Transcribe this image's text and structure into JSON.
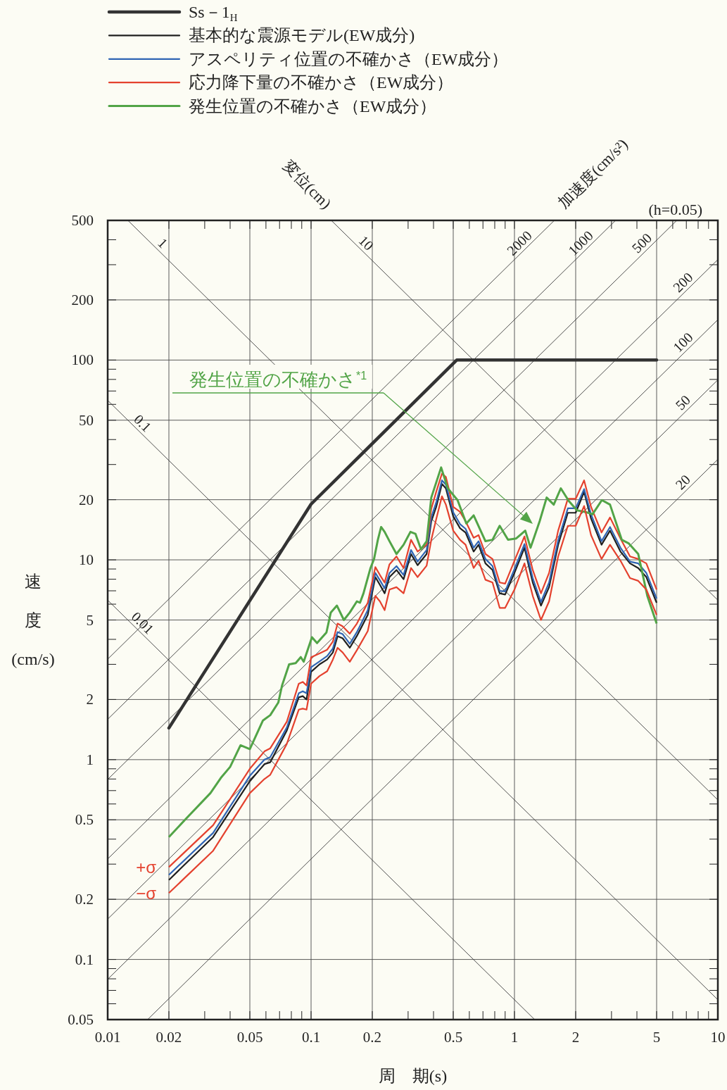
{
  "chart_data": {
    "type": "line",
    "log": "xy",
    "grid": true,
    "legend": "top left",
    "xlabel": "周　期(s)",
    "ylabel": "速度(cm/s)",
    "xlim": [
      0.01,
      10
    ],
    "ylim": [
      0.05,
      500
    ],
    "xticks": [
      0.01,
      0.02,
      {
        "value": 0.03,
        "label": null
      },
      {
        "value": 0.04,
        "label": null
      },
      0.05,
      {
        "value": 0.06,
        "label": null
      },
      {
        "value": 0.07,
        "label": null
      },
      {
        "value": 0.08,
        "label": null
      },
      {
        "value": 0.09,
        "label": null
      },
      0.1,
      0.2,
      {
        "value": 0.3,
        "label": null
      },
      {
        "value": 0.4,
        "label": null
      },
      0.5,
      {
        "value": 0.6,
        "label": null
      },
      {
        "value": 0.7,
        "label": null
      },
      {
        "value": 0.8,
        "label": null
      },
      {
        "value": 0.9,
        "label": null
      },
      1,
      2,
      {
        "value": 3,
        "label": null
      },
      {
        "value": 4,
        "label": null
      },
      5,
      {
        "value": 6,
        "label": null
      },
      {
        "value": 7,
        "label": null
      },
      {
        "value": 8,
        "label": null
      },
      {
        "value": 9,
        "label": null
      },
      10
    ],
    "yticks": [
      0.05,
      {
        "value": 0.06,
        "label": null
      },
      {
        "value": 0.07,
        "label": null
      },
      {
        "value": 0.08,
        "label": null
      },
      {
        "value": 0.09,
        "label": null
      },
      0.1,
      0.2,
      {
        "value": 0.3,
        "label": null
      },
      {
        "value": 0.4,
        "label": null
      },
      0.5,
      {
        "value": 0.6,
        "label": null
      },
      {
        "value": 0.7,
        "label": null
      },
      {
        "value": 0.8,
        "label": null
      },
      {
        "value": 0.9,
        "label": null
      },
      1,
      2,
      {
        "value": 3,
        "label": null
      },
      {
        "value": 4,
        "label": null
      },
      5,
      {
        "value": 6,
        "label": null
      },
      {
        "value": 7,
        "label": null
      },
      {
        "value": 8,
        "label": null
      },
      {
        "value": 9,
        "label": null
      },
      10,
      20,
      {
        "value": 30,
        "label": null
      },
      {
        "value": 40,
        "label": null
      },
      50,
      {
        "value": 60,
        "label": null
      },
      {
        "value": 70,
        "label": null
      },
      {
        "value": 80,
        "label": null
      },
      {
        "value": 90,
        "label": null
      },
      100,
      200,
      {
        "value": 300,
        "label": null
      },
      {
        "value": 400,
        "label": null
      },
      500
    ],
    "x": [
      0.02,
      0.033,
      0.05,
      0.059,
      0.063,
      0.076,
      0.087,
      0.091,
      0.095,
      0.1,
      0.11,
      0.12,
      0.128,
      0.135,
      0.143,
      0.155,
      0.168,
      0.19,
      0.207,
      0.218,
      0.23,
      0.243,
      0.263,
      0.285,
      0.31,
      0.334,
      0.37,
      0.39,
      0.413,
      0.44,
      0.46,
      0.5,
      0.54,
      0.575,
      0.63,
      0.666,
      0.72,
      0.78,
      0.846,
      0.9,
      1,
      1.12,
      1.23,
      1.35,
      1.48,
      1.64,
      1.83,
      2,
      2.2,
      2.38,
      2.68,
      2.95,
      3.32,
      3.7,
      4.06,
      4.45,
      5
    ],
    "series": [
      {
        "name": "10",
        "color": "#3c3c3c",
        "x": [
          0.1257,
          10
        ],
        "values": [
          500,
          6.283
        ]
      },
      {
        "name": "1",
        "color": "#3c3c3c",
        "x": [
          0.01257,
          10
        ],
        "values": [
          500,
          0.6283
        ]
      },
      {
        "name": "0.1",
        "color": "#3c3c3c",
        "x": [
          0.01,
          10
        ],
        "values": [
          62.83,
          0.06283
        ]
      },
      {
        "name": "0.01",
        "color": "#3c3c3c",
        "x": [
          0.01,
          1.257
        ],
        "values": [
          6.283,
          0.05
        ]
      },
      {
        "name": "2000",
        "color": "#3c3c3c",
        "x": [
          0.01,
          1.571
        ],
        "values": [
          3.183,
          500
        ]
      },
      {
        "name": "1000",
        "color": "#3c3c3c",
        "x": [
          0.01,
          3.142
        ],
        "values": [
          1.592,
          500
        ]
      },
      {
        "name": "500",
        "color": "#3c3c3c",
        "x": [
          0.01,
          6.283
        ],
        "values": [
          0.7958,
          500
        ]
      },
      {
        "name": "200",
        "color": "#3c3c3c",
        "x": [
          0.01,
          10
        ],
        "values": [
          0.3183,
          318.3
        ]
      },
      {
        "name": "100",
        "color": "#3c3c3c",
        "x": [
          0.01,
          10
        ],
        "values": [
          0.1592,
          159.2
        ]
      },
      {
        "name": "50",
        "color": "#3c3c3c",
        "x": [
          0.01,
          10
        ],
        "values": [
          0.07958,
          79.58
        ]
      },
      {
        "name": "20",
        "color": "#3c3c3c",
        "x": [
          0.01571,
          10
        ],
        "values": [
          0.05,
          31.83
        ]
      },
      {
        "name": "Ss－1$_{H}$",
        "color": "#333333",
        "x": [
          0.02,
          0.1,
          0.52,
          5
        ],
        "values": [
          1.44,
          19,
          100,
          100
        ]
      },
      {
        "name": "基本的な震源モデル(EW成分)",
        "color": "#1f1f1f",
        "values": [
          0.25,
          0.41,
          0.78,
          0.95,
          0.97,
          1.4,
          2.05,
          2.08,
          2.0,
          2.75,
          3.0,
          3.17,
          3.44,
          4.15,
          4.05,
          3.63,
          4.16,
          5.3,
          8.2,
          7.5,
          6.8,
          8.2,
          8.9,
          8.0,
          10.7,
          9.4,
          10.7,
          15.6,
          18.5,
          24,
          22.8,
          16.5,
          14.4,
          13.7,
          11,
          11.9,
          9.6,
          8.9,
          6.8,
          6.7,
          8.6,
          11.5,
          7.7,
          5.9,
          7.3,
          11.9,
          17.2,
          17.2,
          21.9,
          16.1,
          11.9,
          14,
          11,
          9.6,
          9.1,
          8.2,
          6.1
        ]
      },
      {
        "name": "アスペリティ位置の不確かさ（EW成分）",
        "color": "#2f64b4",
        "values": [
          0.265,
          0.43,
          0.83,
          1.0,
          1.03,
          1.45,
          2.15,
          2.2,
          2.15,
          2.9,
          3.1,
          3.3,
          3.6,
          4.35,
          4.25,
          3.8,
          4.35,
          5.6,
          8.6,
          7.9,
          7.2,
          8.6,
          9.3,
          8.4,
          11.2,
          9.8,
          11.2,
          16.3,
          19.5,
          25,
          23.8,
          17.3,
          15.1,
          14.3,
          11.5,
          12.4,
          10.1,
          9.3,
          7.0,
          6.95,
          9.0,
          12,
          8.1,
          6.15,
          7.7,
          12.5,
          18.1,
          18.1,
          22.6,
          16.9,
          12.4,
          14.6,
          11.5,
          9.8,
          9.6,
          8.6,
          6.4
        ]
      },
      {
        "name": "応力降下量の不確かさ（EW成分）",
        "color": "#e4412e",
        "values": [
          0.29,
          0.47,
          0.9,
          1.1,
          1.14,
          1.55,
          2.4,
          2.45,
          2.35,
          3.25,
          3.4,
          3.55,
          3.9,
          4.8,
          4.65,
          4.27,
          4.8,
          6.1,
          9.2,
          8.4,
          7.7,
          9.5,
          10.4,
          9.1,
          12.6,
          11,
          11.9,
          18,
          22,
          27,
          26,
          18.4,
          17.4,
          15.6,
          12.9,
          13.3,
          10.7,
          10.1,
          7.7,
          7.6,
          9.9,
          13.1,
          8.9,
          6.8,
          8.6,
          14,
          20.2,
          20.2,
          25,
          18.4,
          13.7,
          16.3,
          12.8,
          10.4,
          10.1,
          9.6,
          7.1
        ]
      },
      {
        "name": "発生位置の不確かさ（EW成分）",
        "color": "#52a447",
        "x": [
          0.02,
          0.024,
          0.032,
          0.036,
          0.04,
          0.045,
          0.05,
          0.058,
          0.063,
          0.069,
          0.072,
          0.078,
          0.084,
          0.089,
          0.092,
          0.101,
          0.107,
          0.119,
          0.125,
          0.134,
          0.145,
          0.155,
          0.168,
          0.174,
          0.181,
          0.196,
          0.204,
          0.213,
          0.221,
          0.23,
          0.243,
          0.263,
          0.285,
          0.308,
          0.326,
          0.347,
          0.37,
          0.39,
          0.436,
          0.47,
          0.525,
          0.58,
          0.63,
          0.72,
          0.78,
          0.846,
          0.93,
          1.02,
          1.13,
          1.2,
          1.33,
          1.44,
          1.56,
          1.69,
          1.85,
          2.03,
          2.26,
          2.42,
          2.69,
          2.95,
          3.37,
          3.64,
          4.06,
          4.5,
          5
        ],
        "values": [
          0.41,
          0.5,
          0.68,
          0.81,
          0.92,
          1.18,
          1.13,
          1.57,
          1.67,
          1.93,
          2.35,
          3.0,
          3.04,
          3.26,
          3.09,
          4.1,
          3.83,
          4.33,
          5.45,
          5.9,
          5.0,
          5.45,
          6.2,
          6.1,
          6.8,
          9.1,
          10.1,
          12.6,
          14.6,
          13.8,
          12.4,
          10.7,
          11.9,
          13.8,
          13.5,
          11.3,
          12.4,
          20.5,
          29,
          22.8,
          19.9,
          15.2,
          16.7,
          12.4,
          12.6,
          14.8,
          12.6,
          12.8,
          14,
          11.5,
          15.6,
          20.5,
          18.9,
          22.8,
          19.7,
          17.7,
          17.3,
          16.9,
          19.9,
          18.9,
          12.6,
          12.1,
          10.7,
          6.6,
          4.8
        ]
      },
      {
        "color": "#e4412e",
        "values": [
          0.215,
          0.35,
          0.68,
          0.8,
          0.84,
          1.2,
          1.78,
          1.8,
          1.78,
          2.4,
          2.62,
          2.77,
          3.17,
          3.63,
          3.44,
          3.09,
          3.53,
          4.4,
          6.6,
          6.2,
          5.6,
          7.1,
          7.3,
          6.8,
          9.1,
          8.2,
          9.35,
          12.6,
          16.1,
          20.8,
          18.9,
          14.0,
          12.6,
          11.9,
          9.1,
          9.9,
          7.95,
          7.7,
          5.75,
          5.75,
          7.1,
          9.6,
          6.6,
          5.0,
          6.2,
          10.4,
          14.8,
          14.8,
          18.6,
          13.3,
          10.1,
          11.9,
          9.9,
          8.1,
          7.85,
          7.1,
          5.3
        ]
      }
    ],
    "annotations": [
      "変位(cm)",
      "加速度(cm/s²)",
      "(h=0.05)",
      "発生位置の不確かさ$^{*1}$",
      {
        "text": "+σ",
        "x": 0.02,
        "y": 0.29
      },
      {
        "text": "−σ",
        "x": 0.02,
        "y": 0.215
      }
    ]
  }
}
